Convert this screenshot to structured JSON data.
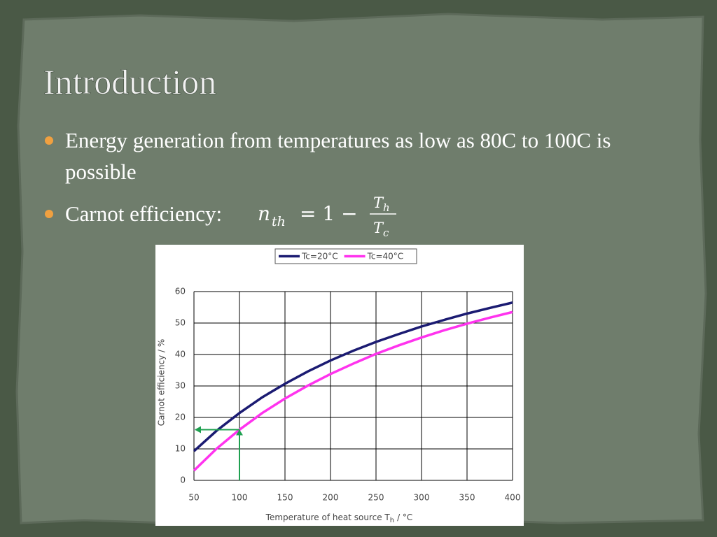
{
  "title": "Introduction",
  "bullets": [
    "Energy generation from temperatures as low as 80C to 100C is possible",
    "Carnot efficiency:"
  ],
  "formula": {
    "symbol": "n",
    "subscript": "th",
    "middle": "= 1 −",
    "numerator": "T",
    "numerator_sub": "h",
    "denominator": "T",
    "denominator_sub": "c"
  },
  "chart_data": {
    "type": "line",
    "x_label": {
      "text": "Temperature of heat source T",
      "subscript": "h",
      "suffix": "/ °C"
    },
    "y_label": "Carnot efficiency / %",
    "x": [
      50,
      75,
      100,
      125,
      150,
      175,
      200,
      225,
      250,
      275,
      300,
      325,
      350,
      375,
      400
    ],
    "series": [
      {
        "name": "Tc=20°C",
        "color": "#1b1b72",
        "values": [
          9.3,
          15.8,
          21.4,
          26.4,
          30.7,
          34.6,
          38.1,
          41.2,
          44.0,
          46.5,
          48.9,
          51.0,
          53.0,
          54.8,
          56.5
        ]
      },
      {
        "name": "Tc=40°C",
        "color": "#ff33ee",
        "values": [
          3.1,
          10.1,
          16.1,
          21.4,
          26.0,
          30.1,
          33.8,
          37.1,
          40.2,
          42.9,
          45.4,
          47.7,
          49.8,
          51.7,
          53.5
        ]
      }
    ],
    "xlim": [
      50,
      400
    ],
    "xticks": [
      50,
      100,
      150,
      200,
      250,
      300,
      350,
      400
    ],
    "ylim": [
      0,
      60
    ],
    "yticks": [
      0,
      10,
      20,
      30,
      40,
      50,
      60
    ],
    "grid": true,
    "legend": "top",
    "annotation": {
      "x": 100,
      "y": 16.1,
      "color": "#1fa050"
    }
  }
}
